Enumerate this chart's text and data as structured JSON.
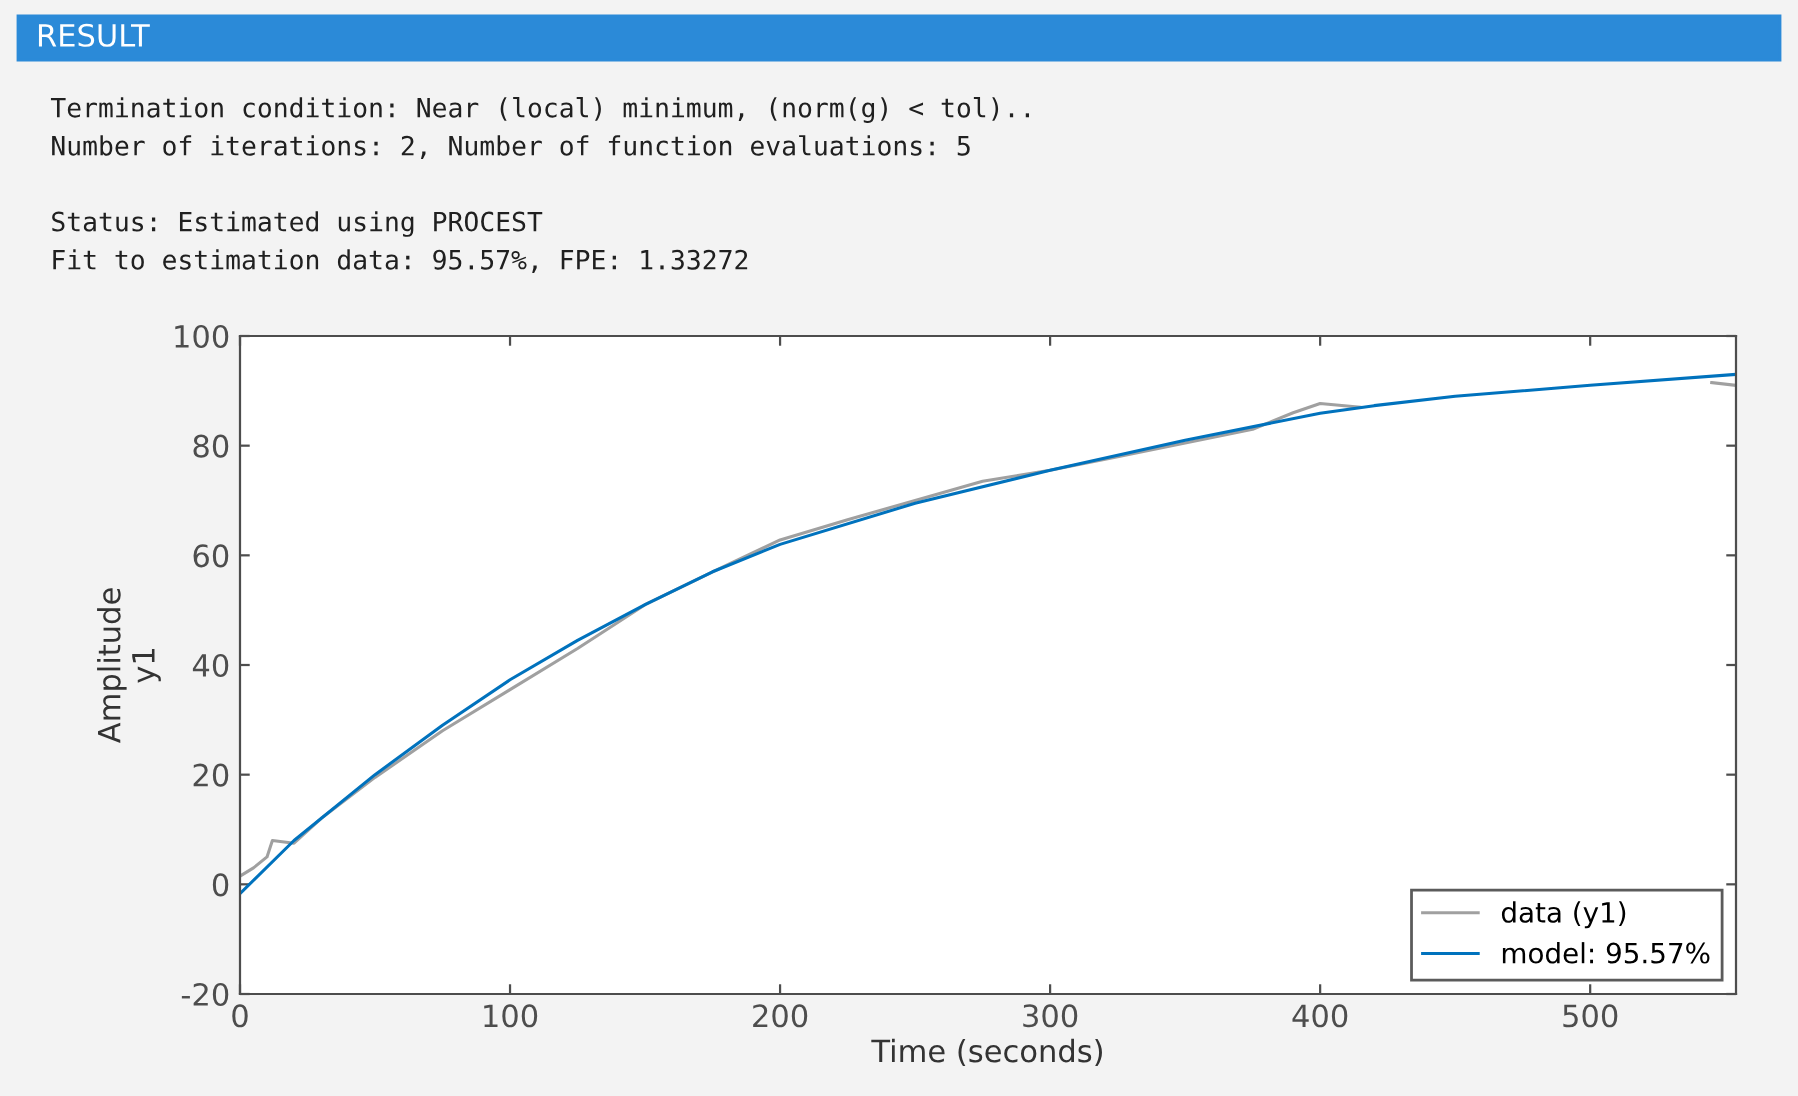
{
  "chart_data": {
    "type": "line",
    "title": "RESULT",
    "annotations": [
      "Termination condition: Near (local) minimum, (norm(g) < tol)..",
      "Number of iterations: 2, Number of function evaluations: 5",
      "Status: Estimated using PROCEST",
      "Fit to estimation data: 95.57%, FPE: 1.33272"
    ],
    "xlabel": "Time (seconds)",
    "ylabel": "Amplitude\ny1",
    "xlim": [
      0,
      554
    ],
    "ylim": [
      -20,
      100
    ],
    "xticks": [
      0,
      100,
      200,
      300,
      400,
      500
    ],
    "yticks": [
      -20,
      0,
      20,
      40,
      60,
      80,
      100
    ],
    "grid": false,
    "legend": "bottom right",
    "line_style": "solid",
    "marker": "none",
    "series": [
      {
        "name": "data (y1)",
        "color": "#a0a0a0",
        "x": [
          0,
          5,
          10,
          12,
          20,
          30,
          50,
          75,
          100,
          125,
          150,
          175,
          200,
          225,
          250,
          275,
          300,
          325,
          350,
          375,
          390,
          400,
          415,
          430,
          545,
          554
        ],
        "values": [
          1.5,
          3,
          5,
          8,
          7.5,
          12,
          19.5,
          28,
          35.5,
          43,
          51,
          57,
          62.8,
          66.5,
          70,
          73.5,
          75.5,
          78,
          80.5,
          83,
          86,
          87.7,
          87,
          null,
          91.5,
          91
        ]
      },
      {
        "name": "model: 95.57%",
        "color": "#0072bd",
        "x": [
          0,
          20,
          50,
          75,
          100,
          125,
          150,
          175,
          200,
          250,
          300,
          350,
          400,
          420,
          450,
          500,
          554
        ],
        "values": [
          -1.7,
          8,
          20,
          29,
          37.3,
          44.5,
          51,
          57,
          62,
          69.5,
          75.5,
          81,
          85.9,
          87.3,
          89,
          91,
          93
        ]
      }
    ]
  }
}
